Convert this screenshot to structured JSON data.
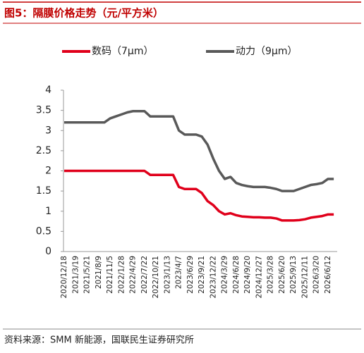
{
  "chart_data": {
    "type": "line",
    "title": "图5：隔膜价格走势（元/平方米）",
    "source": "资料来源：SMM 新能源，国联民生证券研究所",
    "categories": [
      "2020/12/18",
      null,
      "2021/3/19",
      null,
      "2021/5/21",
      null,
      "2021/8/9",
      null,
      "2021/11/5",
      null,
      "2022/1/28",
      null,
      "2022/4/29",
      null,
      "2022/7/22",
      null,
      "2022/10/21",
      null,
      "2023/1/13",
      null,
      "2023/4/7",
      null,
      "2023/6/29",
      null,
      "2023/9/21",
      null,
      "2023/12/22",
      null,
      "2024/3/29",
      null,
      "2024/6/28",
      null,
      "2024/9/20",
      null,
      "2024/12/27",
      null,
      "2025/3/28",
      null,
      "2025/6/20",
      null,
      "2025/9/13",
      null,
      "2025/12/11",
      null,
      "2026/3/20",
      null,
      "2026/6/12",
      null
    ],
    "series": [
      {
        "name": "数码（7μm）",
        "color": "#e0001b",
        "values": [
          2.0,
          2.0,
          2.0,
          2.0,
          2.0,
          2.0,
          2.0,
          2.0,
          2.0,
          2.0,
          2.0,
          2.0,
          2.0,
          2.0,
          2.0,
          1.9,
          1.9,
          1.9,
          1.9,
          1.9,
          1.6,
          1.55,
          1.55,
          1.55,
          1.45,
          1.25,
          1.15,
          1.0,
          0.92,
          0.95,
          0.9,
          0.87,
          0.86,
          0.85,
          0.85,
          0.84,
          0.84,
          0.82,
          0.77,
          0.77,
          0.77,
          0.78,
          0.8,
          0.84,
          0.86,
          0.88,
          0.92,
          0.92
        ]
      },
      {
        "name": "动力（9μm）",
        "color": "#595959",
        "values": [
          3.2,
          3.2,
          3.2,
          3.2,
          3.2,
          3.2,
          3.2,
          3.2,
          3.3,
          3.35,
          3.4,
          3.45,
          3.48,
          3.48,
          3.48,
          3.35,
          3.35,
          3.35,
          3.35,
          3.35,
          3.0,
          2.9,
          2.9,
          2.9,
          2.85,
          2.65,
          2.3,
          2.0,
          1.8,
          1.85,
          1.7,
          1.65,
          1.62,
          1.6,
          1.6,
          1.6,
          1.58,
          1.55,
          1.5,
          1.5,
          1.5,
          1.55,
          1.6,
          1.65,
          1.67,
          1.7,
          1.8,
          1.8
        ]
      }
    ],
    "ylim": [
      0,
      4
    ],
    "yticks": [
      0,
      0.5,
      1,
      1.5,
      2,
      2.5,
      3,
      3.5,
      4
    ],
    "grid": false
  }
}
